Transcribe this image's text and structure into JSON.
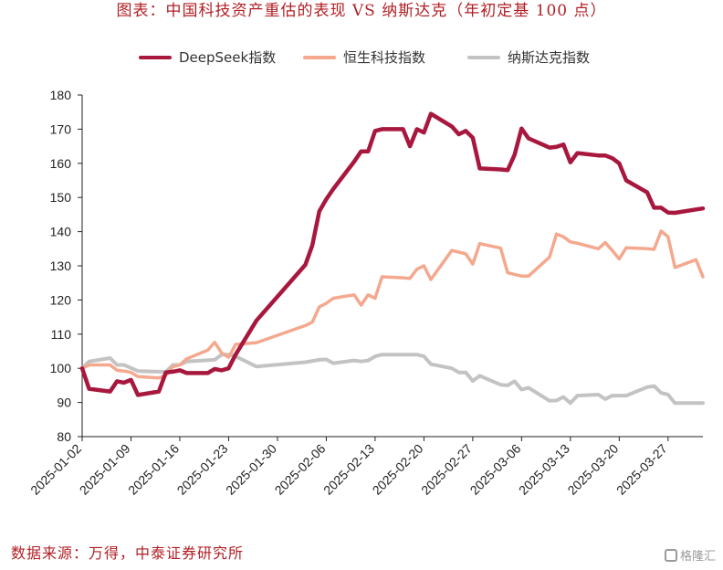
{
  "title": "图表：中国科技资产重估的表现 VS 纳斯达克（年初定基 100 点）",
  "source": "数据来源：万得，中泰证券研究所",
  "watermark": "格隆汇",
  "colors": {
    "title": "#b01f24",
    "deepseek": "#a8173d",
    "hstech": "#f4a88e",
    "nasdaq": "#c3c3c3"
  },
  "icons": {
    "watermark": "gelonghui-logo-icon"
  },
  "chart_data": {
    "type": "line",
    "title": "图表：中国科技资产重估的表现 VS 纳斯达克（年初定基 100 点）",
    "ylim": [
      80,
      180
    ],
    "yticks": [
      80,
      90,
      100,
      110,
      120,
      130,
      140,
      150,
      160,
      170,
      180
    ],
    "xticks": [
      "2025-01-02",
      "2025-01-09",
      "2025-01-16",
      "2025-01-23",
      "2025-01-30",
      "2025-02-06",
      "2025-02-13",
      "2025-02-20",
      "2025-02-27",
      "2025-03-06",
      "2025-03-13",
      "2025-03-20",
      "2025-03-27"
    ],
    "x_range": [
      "2025-01-02",
      "2025-04-01"
    ],
    "grid": false,
    "legend_placement": "top",
    "series": [
      {
        "name": "DeepSeek指数",
        "color": "#a8173d",
        "points": [
          [
            "2025-01-02",
            100
          ],
          [
            "2025-01-03",
            94
          ],
          [
            "2025-01-06",
            93.2
          ],
          [
            "2025-01-07",
            96.2
          ],
          [
            "2025-01-08",
            95.8
          ],
          [
            "2025-01-09",
            96.6
          ],
          [
            "2025-01-10",
            92.2
          ],
          [
            "2025-01-13",
            93.2
          ],
          [
            "2025-01-14",
            98.8
          ],
          [
            "2025-01-15",
            99
          ],
          [
            "2025-01-16",
            99.4
          ],
          [
            "2025-01-17",
            98.6
          ],
          [
            "2025-01-20",
            98.6
          ],
          [
            "2025-01-21",
            99.8
          ],
          [
            "2025-01-22",
            99.4
          ],
          [
            "2025-01-23",
            100
          ],
          [
            "2025-01-24",
            104
          ],
          [
            "2025-01-27",
            114
          ],
          [
            "2025-02-03",
            130.3
          ],
          [
            "2025-02-04",
            136
          ],
          [
            "2025-02-05",
            146
          ],
          [
            "2025-02-06",
            149.5
          ],
          [
            "2025-02-07",
            152.5
          ],
          [
            "2025-02-10",
            160.5
          ],
          [
            "2025-02-11",
            163.5
          ],
          [
            "2025-02-12",
            163.5
          ],
          [
            "2025-02-13",
            169.5
          ],
          [
            "2025-02-14",
            170
          ],
          [
            "2025-02-17",
            170
          ],
          [
            "2025-02-18",
            165
          ],
          [
            "2025-02-19",
            170
          ],
          [
            "2025-02-20",
            169
          ],
          [
            "2025-02-21",
            174.5
          ],
          [
            "2025-02-24",
            170.8
          ],
          [
            "2025-02-25",
            168.5
          ],
          [
            "2025-02-26",
            169.5
          ],
          [
            "2025-02-27",
            167.5
          ],
          [
            "2025-02-28",
            158.5
          ],
          [
            "2025-03-03",
            158.2
          ],
          [
            "2025-03-04",
            158
          ],
          [
            "2025-03-05",
            162.5
          ],
          [
            "2025-03-06",
            170.2
          ],
          [
            "2025-03-07",
            167.3
          ],
          [
            "2025-03-10",
            164.6
          ],
          [
            "2025-03-11",
            164.8
          ],
          [
            "2025-03-12",
            165.5
          ],
          [
            "2025-03-13",
            160.3
          ],
          [
            "2025-03-14",
            163
          ],
          [
            "2025-03-17",
            162.3
          ],
          [
            "2025-03-18",
            162.3
          ],
          [
            "2025-03-19",
            161.5
          ],
          [
            "2025-03-20",
            160
          ],
          [
            "2025-03-21",
            155
          ],
          [
            "2025-03-24",
            151.5
          ],
          [
            "2025-03-25",
            147
          ],
          [
            "2025-03-26",
            147
          ],
          [
            "2025-03-27",
            145.6
          ],
          [
            "2025-03-28",
            145.5
          ],
          [
            "2025-03-31",
            146.5
          ],
          [
            "2025-04-01",
            146.8
          ]
        ]
      },
      {
        "name": "恒生科技指数",
        "color": "#f4a88e",
        "points": [
          [
            "2025-01-02",
            100
          ],
          [
            "2025-01-03",
            101
          ],
          [
            "2025-01-06",
            101
          ],
          [
            "2025-01-07",
            99.4
          ],
          [
            "2025-01-08",
            99.2
          ],
          [
            "2025-01-09",
            98.8
          ],
          [
            "2025-01-10",
            97.6
          ],
          [
            "2025-01-13",
            97.2
          ],
          [
            "2025-01-14",
            97.9
          ],
          [
            "2025-01-15",
            100.5
          ],
          [
            "2025-01-16",
            101
          ],
          [
            "2025-01-17",
            102.8
          ],
          [
            "2025-01-20",
            105.3
          ],
          [
            "2025-01-21",
            107.6
          ],
          [
            "2025-01-22",
            104.5
          ],
          [
            "2025-01-23",
            103.2
          ],
          [
            "2025-01-24",
            107
          ],
          [
            "2025-01-27",
            107.5
          ],
          [
            "2025-02-03",
            112.5
          ],
          [
            "2025-02-04",
            113.5
          ],
          [
            "2025-02-05",
            118
          ],
          [
            "2025-02-06",
            119
          ],
          [
            "2025-02-07",
            120.5
          ],
          [
            "2025-02-10",
            121.5
          ],
          [
            "2025-02-11",
            118.5
          ],
          [
            "2025-02-12",
            121.5
          ],
          [
            "2025-02-13",
            120.5
          ],
          [
            "2025-02-14",
            126.8
          ],
          [
            "2025-02-17",
            126.5
          ],
          [
            "2025-02-18",
            126.3
          ],
          [
            "2025-02-19",
            129
          ],
          [
            "2025-02-20",
            130
          ],
          [
            "2025-02-21",
            126
          ],
          [
            "2025-02-24",
            134.5
          ],
          [
            "2025-02-25",
            134
          ],
          [
            "2025-02-26",
            133.5
          ],
          [
            "2025-02-27",
            130.5
          ],
          [
            "2025-02-28",
            136.5
          ],
          [
            "2025-03-03",
            135.2
          ],
          [
            "2025-03-04",
            128
          ],
          [
            "2025-03-05",
            127.5
          ],
          [
            "2025-03-06",
            127
          ],
          [
            "2025-03-07",
            127
          ],
          [
            "2025-03-10",
            132.5
          ],
          [
            "2025-03-11",
            139.3
          ],
          [
            "2025-03-12",
            138.5
          ],
          [
            "2025-03-13",
            137
          ],
          [
            "2025-03-14",
            136.6
          ],
          [
            "2025-03-17",
            135
          ],
          [
            "2025-03-18",
            136.8
          ],
          [
            "2025-03-19",
            134.5
          ],
          [
            "2025-03-20",
            132
          ],
          [
            "2025-03-21",
            135.3
          ],
          [
            "2025-03-24",
            135
          ],
          [
            "2025-03-25",
            134.8
          ],
          [
            "2025-03-26",
            140.2
          ],
          [
            "2025-03-27",
            138.5
          ],
          [
            "2025-03-28",
            129.5
          ],
          [
            "2025-03-31",
            131.8
          ],
          [
            "2025-04-01",
            126.8
          ]
        ]
      },
      {
        "name": "纳斯达克指数",
        "color": "#c3c3c3",
        "points": [
          [
            "2025-01-02",
            100
          ],
          [
            "2025-01-03",
            102
          ],
          [
            "2025-01-06",
            103
          ],
          [
            "2025-01-07",
            101
          ],
          [
            "2025-01-08",
            101
          ],
          [
            "2025-01-10",
            99.2
          ],
          [
            "2025-01-13",
            99
          ],
          [
            "2025-01-14",
            99
          ],
          [
            "2025-01-15",
            101
          ],
          [
            "2025-01-16",
            101
          ],
          [
            "2025-01-17",
            102
          ],
          [
            "2025-01-21",
            102.5
          ],
          [
            "2025-01-22",
            104
          ],
          [
            "2025-01-23",
            104
          ],
          [
            "2025-01-24",
            103.5
          ],
          [
            "2025-01-27",
            100.5
          ],
          [
            "2025-02-03",
            101.8
          ],
          [
            "2025-02-05",
            102.5
          ],
          [
            "2025-02-06",
            102.6
          ],
          [
            "2025-02-07",
            101.5
          ],
          [
            "2025-02-10",
            102.3
          ],
          [
            "2025-02-11",
            102
          ],
          [
            "2025-02-12",
            102.3
          ],
          [
            "2025-02-13",
            103.5
          ],
          [
            "2025-02-14",
            104
          ],
          [
            "2025-02-18",
            104
          ],
          [
            "2025-02-19",
            104
          ],
          [
            "2025-02-20",
            103.5
          ],
          [
            "2025-02-21",
            101.2
          ],
          [
            "2025-02-24",
            100
          ],
          [
            "2025-02-25",
            98.8
          ],
          [
            "2025-02-26",
            98.8
          ],
          [
            "2025-02-27",
            96.3
          ],
          [
            "2025-02-28",
            97.8
          ],
          [
            "2025-03-03",
            95.2
          ],
          [
            "2025-03-04",
            95
          ],
          [
            "2025-03-05",
            96.2
          ],
          [
            "2025-03-06",
            93.8
          ],
          [
            "2025-03-07",
            94.3
          ],
          [
            "2025-03-10",
            90.5
          ],
          [
            "2025-03-11",
            90.6
          ],
          [
            "2025-03-12",
            91.6
          ],
          [
            "2025-03-13",
            89.8
          ],
          [
            "2025-03-14",
            92
          ],
          [
            "2025-03-17",
            92.3
          ],
          [
            "2025-03-18",
            91
          ],
          [
            "2025-03-19",
            92
          ],
          [
            "2025-03-20",
            92
          ],
          [
            "2025-03-21",
            92
          ],
          [
            "2025-03-24",
            94.5
          ],
          [
            "2025-03-25",
            94.8
          ],
          [
            "2025-03-26",
            92.8
          ],
          [
            "2025-03-27",
            92.3
          ],
          [
            "2025-03-28",
            89.8
          ],
          [
            "2025-03-31",
            89.8
          ],
          [
            "2025-04-01",
            89.8
          ]
        ]
      }
    ]
  }
}
